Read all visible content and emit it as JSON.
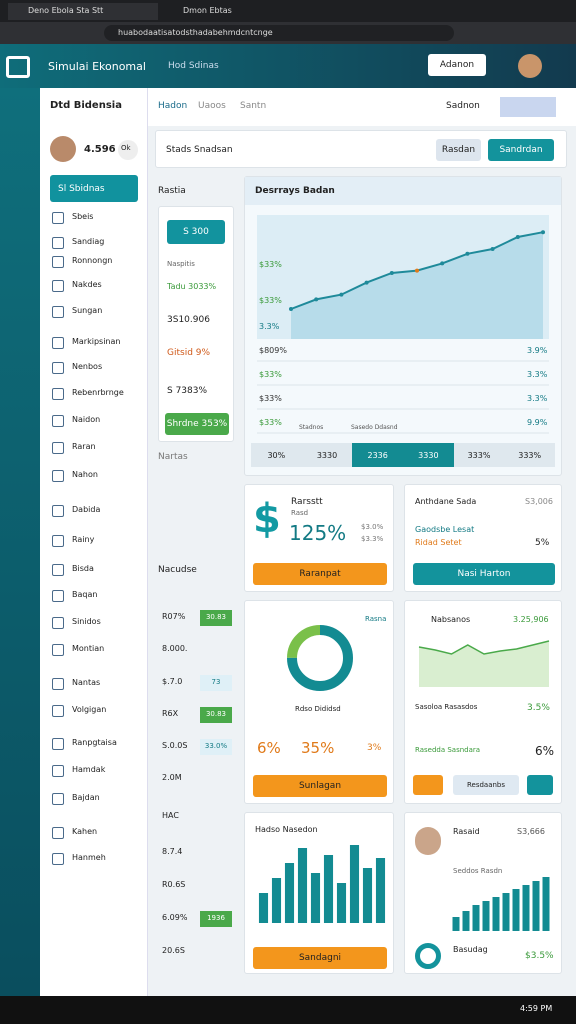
{
  "browser": {
    "tabs": [
      "Deno Ebola Sta Stt",
      "Dmon Ebtas"
    ],
    "url": "huabodaatisatodsthadabehmdcntcnge"
  },
  "header": {
    "title": "Simulai Ekonomal",
    "nav": "Hod Sdinas",
    "button": "Adanon"
  },
  "sidebar": {
    "title": "Dtd Bidensia",
    "user_value": "4.596",
    "badge": "Ok",
    "active": "Sl Sbidnas",
    "items": [
      "Sbeis",
      "Sandiag",
      "Ronnongn",
      "Nakdes",
      "Sungan",
      "Markipsinan",
      "Nenbos",
      "Rebenrbrnge",
      "Naidon",
      "Raran",
      "Nahon",
      "Dabida",
      "Rainy",
      "Bisda",
      "Baqan",
      "Sinidos",
      "Montian",
      "Nantas",
      "Volgigan",
      "Ranpgtaisa",
      "Hamdak",
      "Bajdan",
      "Kahen",
      "Hanmeh"
    ]
  },
  "toolbar": {
    "tabs": [
      "Hadon",
      "Uaoos",
      "Santn"
    ],
    "right": "Sadnon",
    "search": "Stads Snadsan",
    "button1": "Rasdan",
    "button2": "Sandrdan"
  },
  "stats": {
    "title": "Rastia",
    "button": "S 300",
    "items": [
      "Naspitis",
      "Tadu 3033%",
      "3S10.906",
      "Gitsid 9%",
      "S 7383%"
    ],
    "green_button": "Shrdne 353%",
    "footer": "Nartas",
    "section": "Nacudse",
    "rows": [
      {
        "label": "R07%",
        "badge": "30.83"
      },
      {
        "label": "8.000."
      },
      {
        "label": "$.7.0",
        "badge": "73"
      },
      {
        "label": "R6X",
        "badge": "30.83"
      },
      {
        "label": "S.0.0S",
        "badge": "33.0%"
      },
      {
        "label": "2.0M"
      },
      {
        "label": "HAC"
      },
      {
        "label": "8.7.4"
      },
      {
        "label": "R0.6S"
      },
      {
        "label": "6.09%",
        "badge": "1936"
      },
      {
        "label": "20.6S"
      }
    ]
  },
  "main_chart": {
    "title": "Desrrays Badan",
    "axis_labels": [
      "$33%",
      "$33%",
      "3.3%"
    ],
    "values": [
      20,
      28,
      32,
      42,
      50,
      52,
      58,
      66,
      70,
      80,
      84
    ],
    "rows": [
      [
        "$809%",
        "3.9%"
      ],
      [
        "$33%",
        "3.3%"
      ],
      [
        "$33%",
        "3.3%"
      ],
      [
        "$33%",
        "9.9%"
      ]
    ],
    "annotations": [
      "Stadnos",
      "Sasedo Ddasnd"
    ],
    "footer": [
      "30%",
      "3330",
      "2336",
      "3330",
      "333%",
      "333%"
    ]
  },
  "card1": {
    "title": "Rarsstt",
    "subtitle": "Rasd",
    "value": "125%",
    "side": [
      "$3.0%",
      "$3.3%"
    ],
    "button": "Raranpat"
  },
  "card2": {
    "title": "Anthdane Sada",
    "value": "S3,006",
    "line1": "Gaodsbe Lesat",
    "line2": "Ridad Setet",
    "pct": "5%",
    "button": "Nasi Harton"
  },
  "card3": {
    "title": "Rasna",
    "donut": [
      75,
      25
    ],
    "caption": "Rdso Dididsd",
    "values": [
      "6%",
      "35%",
      "3%"
    ],
    "button": "Sunlagan"
  },
  "card4": {
    "title": "Nabsanos",
    "value": "3.25,906",
    "line": [
      40,
      37,
      33,
      42,
      33,
      36,
      38,
      42,
      46
    ],
    "line1": "Sasoloa Rasasdos",
    "pct1": "3.5%",
    "line2": "Rasedda Sasndara",
    "pct2": "6%",
    "button": "Resdaanbs"
  },
  "card5": {
    "title": "Hadso Nasedon",
    "bars": [
      30,
      45,
      60,
      75,
      50,
      68,
      40,
      78,
      55,
      65
    ],
    "button": "Sandagni"
  },
  "card6": {
    "title": "Rasaid",
    "value": "S3,666",
    "line1": "Seddos Rasdn",
    "bars": [
      20,
      26,
      32,
      36,
      40,
      44,
      48,
      52,
      56,
      60
    ],
    "line2": "Basudag",
    "pct": "$3.5%"
  },
  "taskbar": {
    "time": "4:59 PM"
  }
}
